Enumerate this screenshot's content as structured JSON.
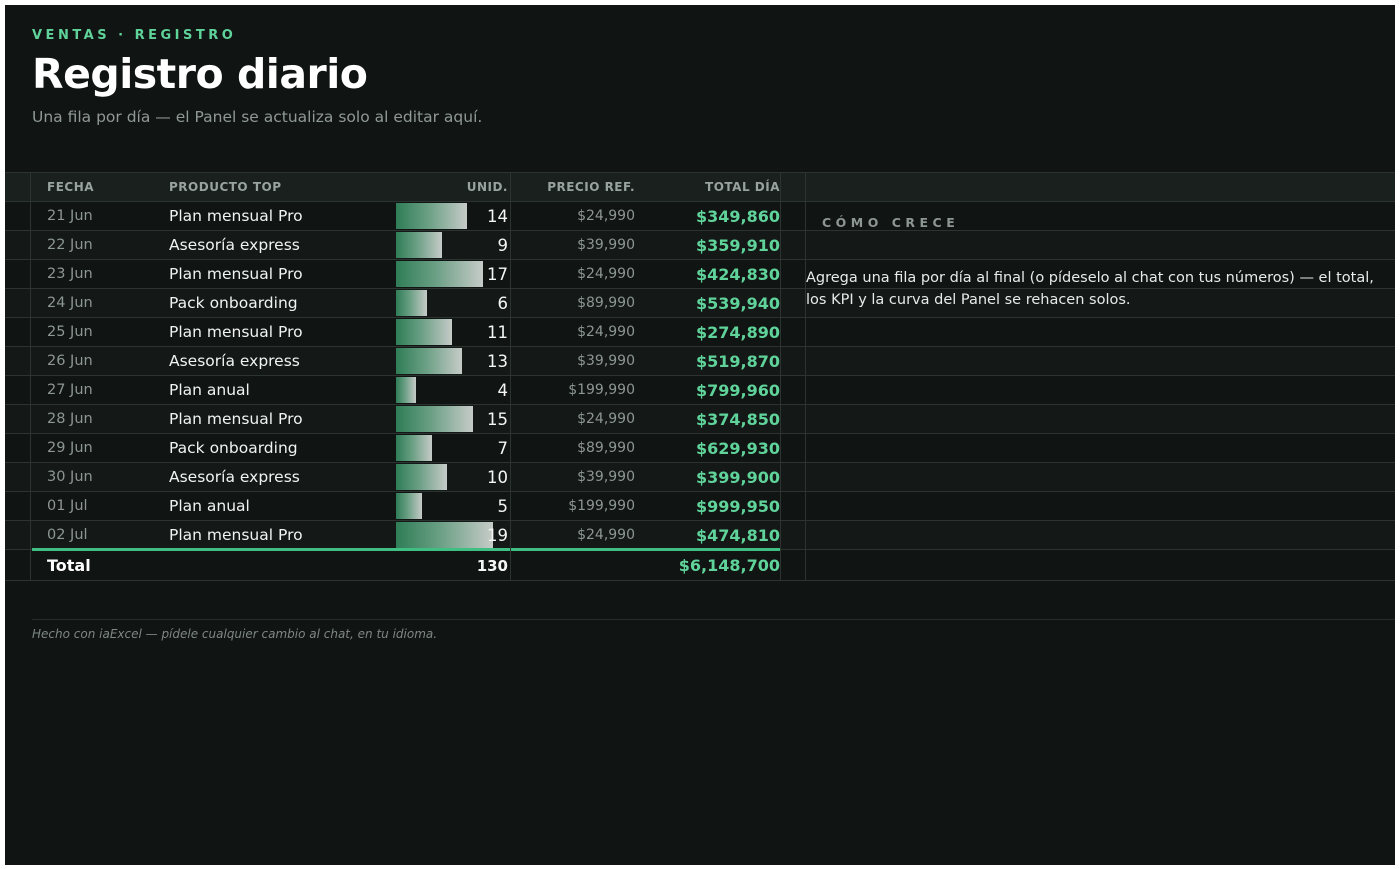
{
  "header": {
    "eyebrow": "VENTAS · REGISTRO",
    "title": "Registro diario",
    "subtitle": "Una fila por día — el Panel se actualiza solo al editar aquí."
  },
  "table": {
    "columns": {
      "date": "FECHA",
      "product": "PRODUCTO TOP",
      "units": "UNID.",
      "price": "PRECIO REF.",
      "total": "TOTAL DÍA"
    },
    "max_units": 19,
    "rows": [
      {
        "date": "21 Jun",
        "product": "Plan mensual Pro",
        "units": 14,
        "price": "$24,990",
        "total": "$349,860"
      },
      {
        "date": "22 Jun",
        "product": "Asesoría express",
        "units": 9,
        "price": "$39,990",
        "total": "$359,910"
      },
      {
        "date": "23 Jun",
        "product": "Plan mensual Pro",
        "units": 17,
        "price": "$24,990",
        "total": "$424,830"
      },
      {
        "date": "24 Jun",
        "product": "Pack onboarding",
        "units": 6,
        "price": "$89,990",
        "total": "$539,940"
      },
      {
        "date": "25 Jun",
        "product": "Plan mensual Pro",
        "units": 11,
        "price": "$24,990",
        "total": "$274,890"
      },
      {
        "date": "26 Jun",
        "product": "Asesoría express",
        "units": 13,
        "price": "$39,990",
        "total": "$519,870"
      },
      {
        "date": "27 Jun",
        "product": "Plan anual",
        "units": 4,
        "price": "$199,990",
        "total": "$799,960"
      },
      {
        "date": "28 Jun",
        "product": "Plan mensual Pro",
        "units": 15,
        "price": "$24,990",
        "total": "$374,850"
      },
      {
        "date": "29 Jun",
        "product": "Pack onboarding",
        "units": 7,
        "price": "$89,990",
        "total": "$629,930"
      },
      {
        "date": "30 Jun",
        "product": "Asesoría express",
        "units": 10,
        "price": "$39,990",
        "total": "$399,900"
      },
      {
        "date": "01 Jul",
        "product": "Plan anual",
        "units": 5,
        "price": "$199,990",
        "total": "$999,950"
      },
      {
        "date": "02 Jul",
        "product": "Plan mensual Pro",
        "units": 19,
        "price": "$24,990",
        "total": "$474,810"
      }
    ],
    "totals": {
      "label": "Total",
      "units": "130",
      "total": "$6,148,700"
    }
  },
  "side_panel": {
    "heading": "CÓMO CRECE",
    "text": "Agrega una fila por día al final (o pídeselo al chat con tus números) — el total, los KPI y la curva del Panel se rehacen solos."
  },
  "footer": {
    "text": "Hecho con iaExcel — pídele cualquier cambio al chat, en tu idioma."
  },
  "colors": {
    "background": "#101413",
    "accent": "#5fd39a",
    "accent_line": "#3fbf82"
  }
}
